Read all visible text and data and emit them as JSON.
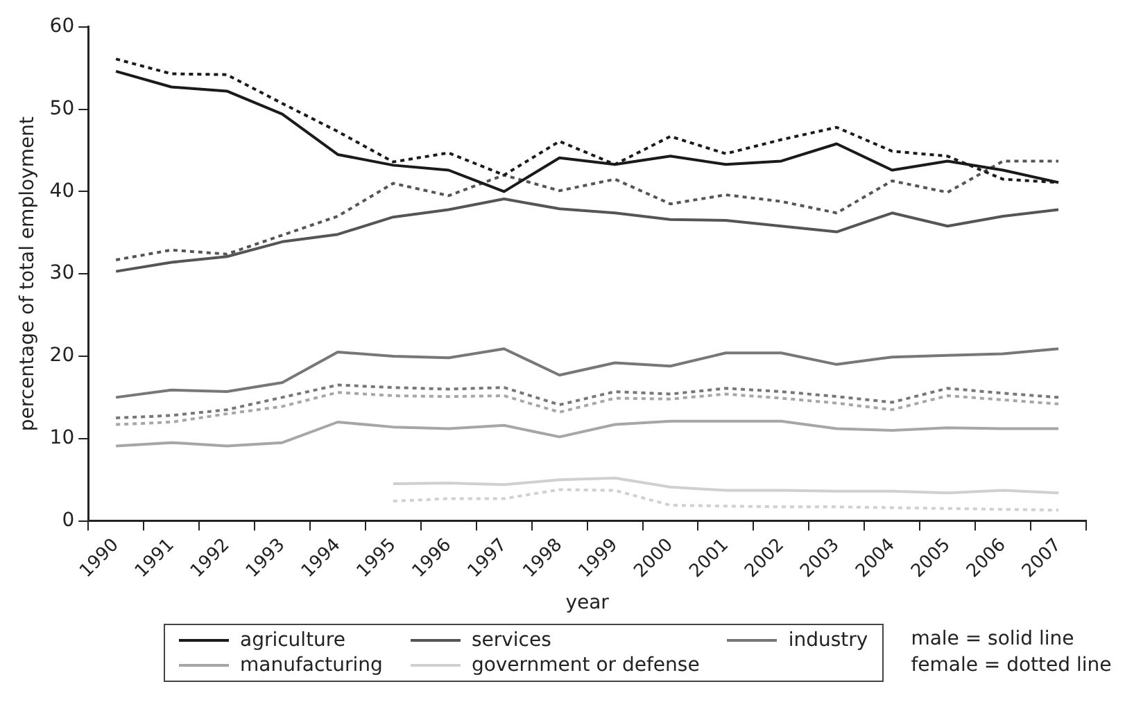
{
  "chart_data": {
    "type": "line",
    "xlabel": "year",
    "ylabel": "percentage of total employment",
    "categories": [
      "1990",
      "1991",
      "1992",
      "1993",
      "1994",
      "1995",
      "1996",
      "1997",
      "1998",
      "1999",
      "2000",
      "2001",
      "2002",
      "2003",
      "2004",
      "2005",
      "2006",
      "2007"
    ],
    "ylim": [
      0,
      60
    ],
    "yticks": [
      0,
      10,
      20,
      30,
      40,
      50,
      60
    ],
    "grid": false,
    "legend": "bottom",
    "marker": "none",
    "series": [
      {
        "name": "agriculture",
        "color": "#1a1a1a",
        "line_style": "solid",
        "values": [
          54.6,
          52.7,
          52.2,
          49.4,
          44.5,
          43.2,
          42.6,
          40.0,
          44.1,
          43.3,
          44.3,
          43.3,
          43.7,
          45.8,
          42.6,
          43.7,
          42.6,
          41.1
        ]
      },
      {
        "color": "#1a1a1a",
        "line_style": "dotted",
        "values": [
          56.1,
          54.3,
          54.2,
          50.7,
          47.3,
          43.6,
          44.7,
          42.0,
          46.1,
          43.3,
          46.7,
          44.6,
          46.3,
          47.8,
          44.9,
          44.3,
          41.5,
          41.1
        ]
      },
      {
        "name": "services",
        "color": "#555555",
        "line_style": "solid",
        "values": [
          30.3,
          31.4,
          32.1,
          33.9,
          34.8,
          36.9,
          37.8,
          39.1,
          37.9,
          37.4,
          36.6,
          36.5,
          35.8,
          35.1,
          37.4,
          35.8,
          37.0,
          37.8
        ]
      },
      {
        "color": "#555555",
        "line_style": "dotted",
        "values": [
          31.7,
          32.9,
          32.4,
          34.7,
          37.0,
          41.0,
          39.5,
          42.0,
          40.1,
          41.5,
          38.5,
          39.6,
          38.8,
          37.4,
          41.3,
          39.9,
          43.7,
          43.7
        ]
      },
      {
        "name": "industry",
        "color": "#777777",
        "line_style": "solid",
        "values": [
          15.0,
          15.9,
          15.7,
          16.8,
          20.5,
          20.0,
          19.8,
          20.9,
          17.7,
          19.2,
          18.8,
          20.4,
          20.4,
          19.0,
          19.9,
          20.1,
          20.3,
          20.9
        ]
      },
      {
        "color": "#777777",
        "line_style": "dotted",
        "values": [
          12.5,
          12.8,
          13.5,
          15.0,
          16.5,
          16.2,
          16.0,
          16.2,
          14.1,
          15.7,
          15.4,
          16.1,
          15.7,
          15.1,
          14.4,
          16.1,
          15.5,
          15.0
        ]
      },
      {
        "name": "manufacturing",
        "color": "#a6a6a6",
        "line_style": "solid",
        "values": [
          9.1,
          9.5,
          9.1,
          9.5,
          12.0,
          11.4,
          11.2,
          11.6,
          10.2,
          11.7,
          12.1,
          12.1,
          12.1,
          11.2,
          11.0,
          11.3,
          11.2,
          11.2
        ]
      },
      {
        "color": "#a6a6a6",
        "line_style": "dotted",
        "values": [
          11.7,
          12.0,
          13.0,
          13.9,
          15.6,
          15.2,
          15.1,
          15.2,
          13.2,
          14.9,
          14.8,
          15.4,
          14.9,
          14.3,
          13.5,
          15.2,
          14.7,
          14.2
        ]
      },
      {
        "name": "government or defense",
        "color": "#d0d0d0",
        "line_style": "solid",
        "values": [
          null,
          null,
          null,
          null,
          null,
          4.5,
          4.6,
          4.4,
          5.0,
          5.2,
          4.1,
          3.7,
          3.7,
          3.6,
          3.6,
          3.4,
          3.7,
          3.4
        ]
      },
      {
        "color": "#d0d0d0",
        "line_style": "dotted",
        "values": [
          null,
          null,
          null,
          null,
          null,
          2.4,
          2.7,
          2.7,
          3.8,
          3.7,
          1.9,
          1.8,
          1.7,
          1.7,
          1.6,
          1.5,
          1.4,
          1.3
        ]
      }
    ],
    "annotations": [
      "male = solid line",
      "female = dotted line"
    ]
  }
}
